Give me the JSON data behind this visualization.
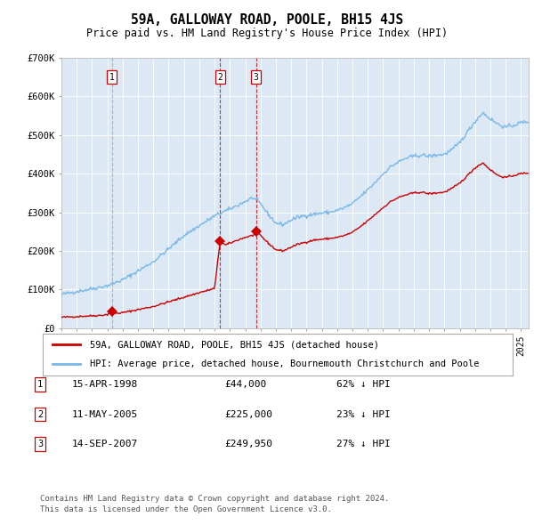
{
  "title": "59A, GALLOWAY ROAD, POOLE, BH15 4JS",
  "subtitle": "Price paid vs. HM Land Registry's House Price Index (HPI)",
  "background_color": "#dce9f5",
  "plot_bg_color": "#dce9f5",
  "ylim": [
    0,
    700000
  ],
  "yticks": [
    0,
    100000,
    200000,
    300000,
    400000,
    500000,
    600000,
    700000
  ],
  "ytick_labels": [
    "£0",
    "£100K",
    "£200K",
    "£300K",
    "£400K",
    "£500K",
    "£600K",
    "£700K"
  ],
  "xlim_start": 1995.0,
  "xlim_end": 2025.5,
  "sale_dates": [
    1998.29,
    2005.36,
    2007.71
  ],
  "sale_prices": [
    44000,
    225000,
    249950
  ],
  "sale_labels": [
    "1",
    "2",
    "3"
  ],
  "legend_red_label": "59A, GALLOWAY ROAD, POOLE, BH15 4JS (detached house)",
  "legend_blue_label": "HPI: Average price, detached house, Bournemouth Christchurch and Poole",
  "table_rows": [
    {
      "num": "1",
      "date": "15-APR-1998",
      "price": "£44,000",
      "hpi": "62% ↓ HPI"
    },
    {
      "num": "2",
      "date": "11-MAY-2005",
      "price": "£225,000",
      "hpi": "23% ↓ HPI"
    },
    {
      "num": "3",
      "date": "14-SEP-2007",
      "price": "£249,950",
      "hpi": "27% ↓ HPI"
    }
  ],
  "footer_line1": "Contains HM Land Registry data © Crown copyright and database right 2024.",
  "footer_line2": "This data is licensed under the Open Government Licence v3.0.",
  "red_line_color": "#cc0000",
  "blue_line_color": "#7ab8e8",
  "vline1_color": "#999999",
  "vline_sale_color": "#cc0000",
  "hpi_keypoints": [
    [
      1995.0,
      87000
    ],
    [
      1996.0,
      95000
    ],
    [
      1997.0,
      102000
    ],
    [
      1998.0,
      110000
    ],
    [
      1999.0,
      125000
    ],
    [
      2000.0,
      148000
    ],
    [
      2001.0,
      172000
    ],
    [
      2002.0,
      205000
    ],
    [
      2003.0,
      240000
    ],
    [
      2004.0,
      265000
    ],
    [
      2004.5,
      278000
    ],
    [
      2005.0,
      290000
    ],
    [
      2005.5,
      300000
    ],
    [
      2006.0,
      308000
    ],
    [
      2006.5,
      318000
    ],
    [
      2007.0,
      328000
    ],
    [
      2007.5,
      338000
    ],
    [
      2008.0,
      322000
    ],
    [
      2008.5,
      295000
    ],
    [
      2009.0,
      272000
    ],
    [
      2009.5,
      268000
    ],
    [
      2010.0,
      280000
    ],
    [
      2010.5,
      288000
    ],
    [
      2011.0,
      292000
    ],
    [
      2011.5,
      295000
    ],
    [
      2012.0,
      298000
    ],
    [
      2012.5,
      300000
    ],
    [
      2013.0,
      305000
    ],
    [
      2013.5,
      312000
    ],
    [
      2014.0,
      322000
    ],
    [
      2014.5,
      340000
    ],
    [
      2015.0,
      358000
    ],
    [
      2015.5,
      378000
    ],
    [
      2016.0,
      400000
    ],
    [
      2016.5,
      418000
    ],
    [
      2017.0,
      430000
    ],
    [
      2017.5,
      440000
    ],
    [
      2018.0,
      445000
    ],
    [
      2018.5,
      448000
    ],
    [
      2019.0,
      445000
    ],
    [
      2019.5,
      448000
    ],
    [
      2020.0,
      450000
    ],
    [
      2020.5,
      462000
    ],
    [
      2021.0,
      480000
    ],
    [
      2021.5,
      508000
    ],
    [
      2022.0,
      535000
    ],
    [
      2022.5,
      558000
    ],
    [
      2023.0,
      542000
    ],
    [
      2023.5,
      528000
    ],
    [
      2024.0,
      520000
    ],
    [
      2024.5,
      525000
    ],
    [
      2025.0,
      532000
    ],
    [
      2025.5,
      535000
    ]
  ],
  "red_keypoints": [
    [
      1995.0,
      28000
    ],
    [
      1996.0,
      30000
    ],
    [
      1997.0,
      32000
    ],
    [
      1997.5,
      33000
    ],
    [
      1998.0,
      35000
    ],
    [
      1998.29,
      44000
    ],
    [
      1998.5,
      38000
    ],
    [
      1999.0,
      40000
    ],
    [
      2000.0,
      48000
    ],
    [
      2001.0,
      56000
    ],
    [
      2002.0,
      68000
    ],
    [
      2003.0,
      80000
    ],
    [
      2004.0,
      92000
    ],
    [
      2004.5,
      97000
    ],
    [
      2005.0,
      103000
    ],
    [
      2005.36,
      225000
    ],
    [
      2005.7,
      215000
    ],
    [
      2006.0,
      220000
    ],
    [
      2006.5,
      228000
    ],
    [
      2007.0,
      235000
    ],
    [
      2007.5,
      240000
    ],
    [
      2007.71,
      249950
    ],
    [
      2008.0,
      240000
    ],
    [
      2008.5,
      220000
    ],
    [
      2009.0,
      203000
    ],
    [
      2009.5,
      200000
    ],
    [
      2010.0,
      210000
    ],
    [
      2010.5,
      218000
    ],
    [
      2011.0,
      223000
    ],
    [
      2011.5,
      228000
    ],
    [
      2012.0,
      230000
    ],
    [
      2012.5,
      232000
    ],
    [
      2013.0,
      235000
    ],
    [
      2013.5,
      240000
    ],
    [
      2014.0,
      248000
    ],
    [
      2014.5,
      262000
    ],
    [
      2015.0,
      278000
    ],
    [
      2015.5,
      295000
    ],
    [
      2016.0,
      312000
    ],
    [
      2016.5,
      328000
    ],
    [
      2017.0,
      338000
    ],
    [
      2017.5,
      345000
    ],
    [
      2018.0,
      350000
    ],
    [
      2018.5,
      352000
    ],
    [
      2019.0,
      348000
    ],
    [
      2019.5,
      350000
    ],
    [
      2020.0,
      352000
    ],
    [
      2020.5,
      362000
    ],
    [
      2021.0,
      375000
    ],
    [
      2021.5,
      395000
    ],
    [
      2022.0,
      415000
    ],
    [
      2022.5,
      428000
    ],
    [
      2023.0,
      410000
    ],
    [
      2023.5,
      395000
    ],
    [
      2024.0,
      390000
    ],
    [
      2024.5,
      395000
    ],
    [
      2025.0,
      400000
    ],
    [
      2025.5,
      402000
    ]
  ]
}
